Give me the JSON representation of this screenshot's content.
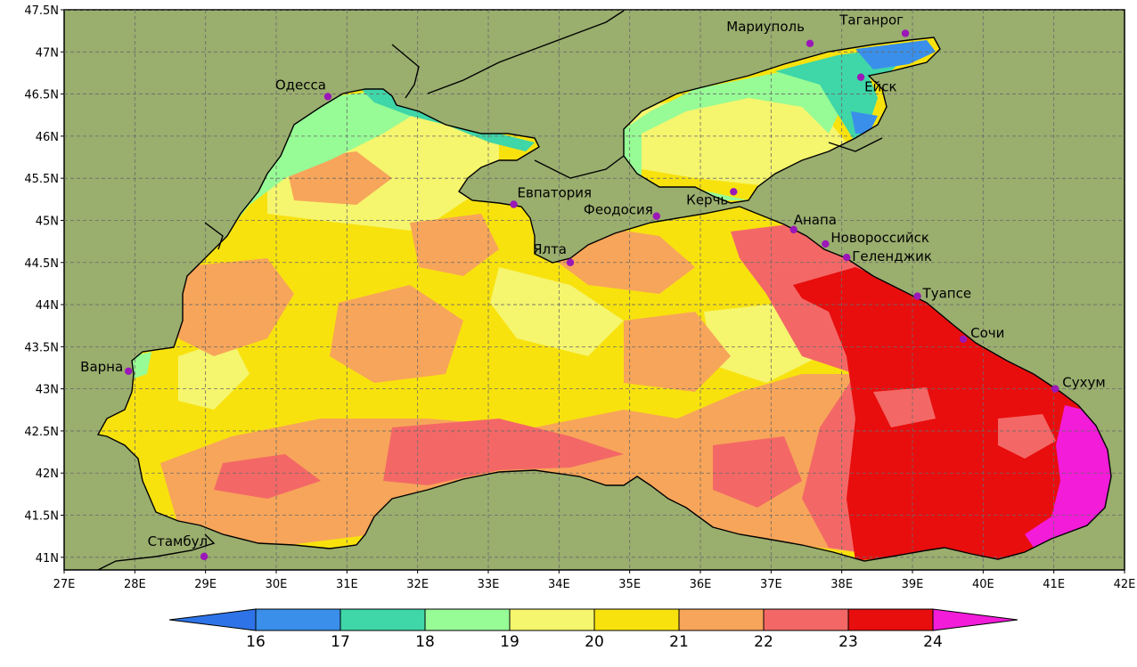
{
  "map": {
    "land_color": "#9aae6e",
    "grid": true,
    "lon_labels": [
      "27E",
      "28E",
      "29E",
      "30E",
      "31E",
      "32E",
      "33E",
      "34E",
      "35E",
      "36E",
      "37E",
      "38E",
      "39E",
      "40E",
      "41E",
      "42E"
    ],
    "lat_labels": [
      "47.5N",
      "47N",
      "46.5N",
      "46N",
      "45.5N",
      "45N",
      "44.5N",
      "44N",
      "43.5N",
      "43N",
      "42.5N",
      "42N",
      "41.5N",
      "41N"
    ],
    "lon_range": [
      27,
      42
    ],
    "lat_range": [
      40.85,
      47.5
    ]
  },
  "cities": [
    {
      "name": "Мариуполь",
      "lon": 37.55,
      "lat": 47.1
    },
    {
      "name": "Таганрог",
      "lon": 38.9,
      "lat": 47.22
    },
    {
      "name": "Ейск",
      "lon": 38.27,
      "lat": 46.7
    },
    {
      "name": "Одесса",
      "lon": 30.73,
      "lat": 46.47
    },
    {
      "name": "Евпатория",
      "lon": 33.36,
      "lat": 45.19
    },
    {
      "name": "Феодосия",
      "lon": 35.38,
      "lat": 45.05
    },
    {
      "name": "Керчь",
      "lon": 36.47,
      "lat": 45.34
    },
    {
      "name": "Анапа",
      "lon": 37.32,
      "lat": 44.89
    },
    {
      "name": "Новороссийск",
      "lon": 37.77,
      "lat": 44.72
    },
    {
      "name": "Геленджик",
      "lon": 38.07,
      "lat": 44.56
    },
    {
      "name": "Ялта",
      "lon": 34.16,
      "lat": 44.5
    },
    {
      "name": "Туапсе",
      "lon": 39.07,
      "lat": 44.1
    },
    {
      "name": "Сочи",
      "lon": 39.72,
      "lat": 43.59
    },
    {
      "name": "Сухум",
      "lon": 41.02,
      "lat": 43.0
    },
    {
      "name": "Варна",
      "lon": 27.91,
      "lat": 43.21
    },
    {
      "name": "Стамбул",
      "lon": 28.98,
      "lat": 41.01
    }
  ],
  "colorbar": {
    "labels": [
      "16",
      "17",
      "18",
      "19",
      "20",
      "21",
      "22",
      "23",
      "24"
    ],
    "colors": [
      "#2e74e8",
      "#3a8fea",
      "#3fd6a8",
      "#97fb96",
      "#f5f56e",
      "#f8e20e",
      "#f7a55a",
      "#f36866",
      "#e80e0e",
      "#f21cd9"
    ]
  },
  "temperature_field": {
    "palette": {
      "t17": "#3a8fea",
      "t18": "#3fd6a8",
      "t19": "#97fb96",
      "t20": "#f5f56e",
      "t21": "#f8e20e",
      "t22": "#f7a55a",
      "t23": "#f36866",
      "t24": "#e80e0e",
      "t25": "#f21cd9"
    }
  }
}
